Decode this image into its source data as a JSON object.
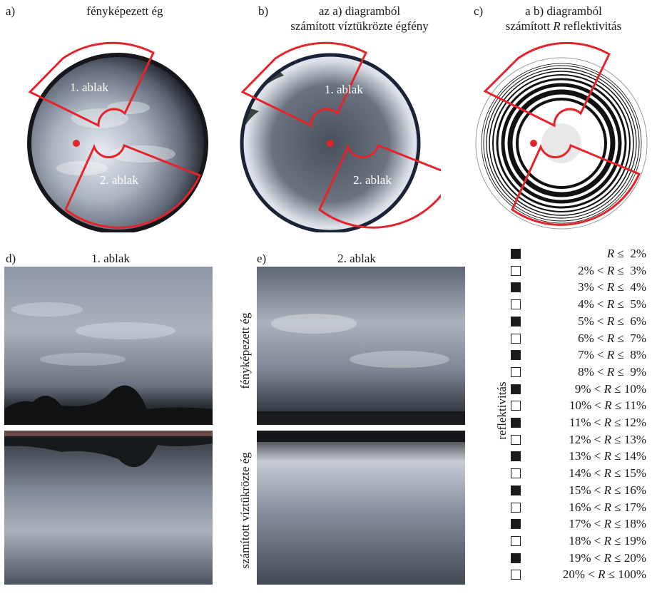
{
  "top": {
    "a": {
      "letter": "a)",
      "title": "fényképezett ég"
    },
    "b": {
      "letter": "b)",
      "title_line1": "az a) diagramból",
      "title_line2": "számított víztükrözte égfény"
    },
    "c": {
      "letter": "c)",
      "title_line1": "a b) diagramból",
      "title_line2_prefix": "számított ",
      "title_line2_var": "R",
      "title_line2_suffix": " reflektivitás"
    }
  },
  "windows": {
    "w1": "1. ablak",
    "w2": "2. ablak"
  },
  "bottom": {
    "d": {
      "letter": "d)",
      "title": "1. ablak"
    },
    "e": {
      "letter": "e)",
      "title": "2. ablak"
    },
    "row_label_top": "fényképezett ég",
    "row_label_bottom": "számított víztükrözte ég"
  },
  "legend": {
    "axis_label": "reflektivitás",
    "variable": "R",
    "items": [
      {
        "pre": "",
        "post": " ≤  2%",
        "filled": true
      },
      {
        "pre": "2% < ",
        "post": " ≤  3%",
        "filled": false
      },
      {
        "pre": "3% < ",
        "post": " ≤  4%",
        "filled": true
      },
      {
        "pre": "4% < ",
        "post": " ≤  5%",
        "filled": false
      },
      {
        "pre": "5% < ",
        "post": " ≤  6%",
        "filled": true
      },
      {
        "pre": "6% < ",
        "post": " ≤  7%",
        "filled": false
      },
      {
        "pre": "7% < ",
        "post": " ≤  8%",
        "filled": true
      },
      {
        "pre": "8% < ",
        "post": " ≤  9%",
        "filled": false
      },
      {
        "pre": "9% < ",
        "post": " ≤ 10%",
        "filled": true
      },
      {
        "pre": "10% < ",
        "post": " ≤ 11%",
        "filled": false
      },
      {
        "pre": "11% < ",
        "post": " ≤ 12%",
        "filled": true
      },
      {
        "pre": "12% < ",
        "post": " ≤ 13%",
        "filled": false
      },
      {
        "pre": "13% < ",
        "post": " ≤ 14%",
        "filled": true
      },
      {
        "pre": "14% < ",
        "post": " ≤ 15%",
        "filled": false
      },
      {
        "pre": "15% < ",
        "post": " ≤ 16%",
        "filled": true
      },
      {
        "pre": "16% < ",
        "post": " ≤ 17%",
        "filled": false
      },
      {
        "pre": "17% < ",
        "post": " ≤ 18%",
        "filled": true
      },
      {
        "pre": "18% < ",
        "post": " ≤ 19%",
        "filled": false
      },
      {
        "pre": "19% < ",
        "post": " ≤ 20%",
        "filled": true
      },
      {
        "pre": "20% < ",
        "post": " ≤ 100%",
        "filled": false
      }
    ]
  },
  "colors": {
    "window_outline": "#e3242b",
    "sun_marker": "#e3242b",
    "box_fill": "#1a1a1a"
  }
}
